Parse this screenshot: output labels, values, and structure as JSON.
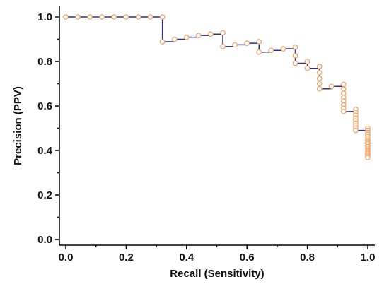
{
  "chart_data": {
    "type": "line",
    "title": "",
    "xlabel": "Recall (Sensitivity)",
    "ylabel": "Precision (PPV)",
    "xlim": [
      0.0,
      1.0
    ],
    "ylim": [
      0.0,
      1.0
    ],
    "x_ticks": [
      "0.0",
      "0.2",
      "0.4",
      "0.6",
      "0.8",
      "1.0"
    ],
    "y_ticks": [
      "0.0",
      "0.2",
      "0.4",
      "0.6",
      "0.8",
      "1.0"
    ],
    "grid": false,
    "legend": "none",
    "step_line": true,
    "line_color": "#2b2f8f",
    "marker_color": "#f0a060",
    "points": [
      {
        "x": 0.0,
        "y": 1.0
      },
      {
        "x": 0.04,
        "y": 1.0
      },
      {
        "x": 0.08,
        "y": 1.0
      },
      {
        "x": 0.12,
        "y": 1.0
      },
      {
        "x": 0.16,
        "y": 1.0
      },
      {
        "x": 0.2,
        "y": 1.0
      },
      {
        "x": 0.24,
        "y": 1.0
      },
      {
        "x": 0.28,
        "y": 1.0
      },
      {
        "x": 0.32,
        "y": 1.0
      },
      {
        "x": 0.32,
        "y": 0.889
      },
      {
        "x": 0.36,
        "y": 0.9
      },
      {
        "x": 0.4,
        "y": 0.909
      },
      {
        "x": 0.44,
        "y": 0.917
      },
      {
        "x": 0.48,
        "y": 0.923
      },
      {
        "x": 0.52,
        "y": 0.929
      },
      {
        "x": 0.52,
        "y": 0.867
      },
      {
        "x": 0.56,
        "y": 0.875
      },
      {
        "x": 0.6,
        "y": 0.882
      },
      {
        "x": 0.64,
        "y": 0.889
      },
      {
        "x": 0.64,
        "y": 0.842
      },
      {
        "x": 0.68,
        "y": 0.85
      },
      {
        "x": 0.72,
        "y": 0.857
      },
      {
        "x": 0.76,
        "y": 0.864
      },
      {
        "x": 0.76,
        "y": 0.826
      },
      {
        "x": 0.76,
        "y": 0.792
      },
      {
        "x": 0.8,
        "y": 0.8
      },
      {
        "x": 0.8,
        "y": 0.769
      },
      {
        "x": 0.84,
        "y": 0.778
      },
      {
        "x": 0.84,
        "y": 0.75
      },
      {
        "x": 0.84,
        "y": 0.724
      },
      {
        "x": 0.84,
        "y": 0.7
      },
      {
        "x": 0.84,
        "y": 0.677
      },
      {
        "x": 0.88,
        "y": 0.688
      },
      {
        "x": 0.92,
        "y": 0.697
      },
      {
        "x": 0.92,
        "y": 0.676
      },
      {
        "x": 0.92,
        "y": 0.657
      },
      {
        "x": 0.92,
        "y": 0.639
      },
      {
        "x": 0.92,
        "y": 0.622
      },
      {
        "x": 0.92,
        "y": 0.605
      },
      {
        "x": 0.92,
        "y": 0.59
      },
      {
        "x": 0.92,
        "y": 0.575
      },
      {
        "x": 0.96,
        "y": 0.585
      },
      {
        "x": 0.96,
        "y": 0.571
      },
      {
        "x": 0.96,
        "y": 0.558
      },
      {
        "x": 0.96,
        "y": 0.545
      },
      {
        "x": 0.96,
        "y": 0.533
      },
      {
        "x": 0.96,
        "y": 0.522
      },
      {
        "x": 0.96,
        "y": 0.511
      },
      {
        "x": 0.96,
        "y": 0.5
      },
      {
        "x": 0.96,
        "y": 0.49
      },
      {
        "x": 1.0,
        "y": 0.5
      },
      {
        "x": 1.0,
        "y": 0.49
      },
      {
        "x": 1.0,
        "y": 0.481
      },
      {
        "x": 1.0,
        "y": 0.472
      },
      {
        "x": 1.0,
        "y": 0.463
      },
      {
        "x": 1.0,
        "y": 0.455
      },
      {
        "x": 1.0,
        "y": 0.446
      },
      {
        "x": 1.0,
        "y": 0.439
      },
      {
        "x": 1.0,
        "y": 0.431
      },
      {
        "x": 1.0,
        "y": 0.424
      },
      {
        "x": 1.0,
        "y": 0.417
      },
      {
        "x": 1.0,
        "y": 0.41
      },
      {
        "x": 1.0,
        "y": 0.403
      },
      {
        "x": 1.0,
        "y": 0.397
      },
      {
        "x": 1.0,
        "y": 0.391
      },
      {
        "x": 1.0,
        "y": 0.385
      },
      {
        "x": 1.0,
        "y": 0.379
      },
      {
        "x": 1.0,
        "y": 0.373
      },
      {
        "x": 1.0,
        "y": 0.368
      }
    ]
  }
}
